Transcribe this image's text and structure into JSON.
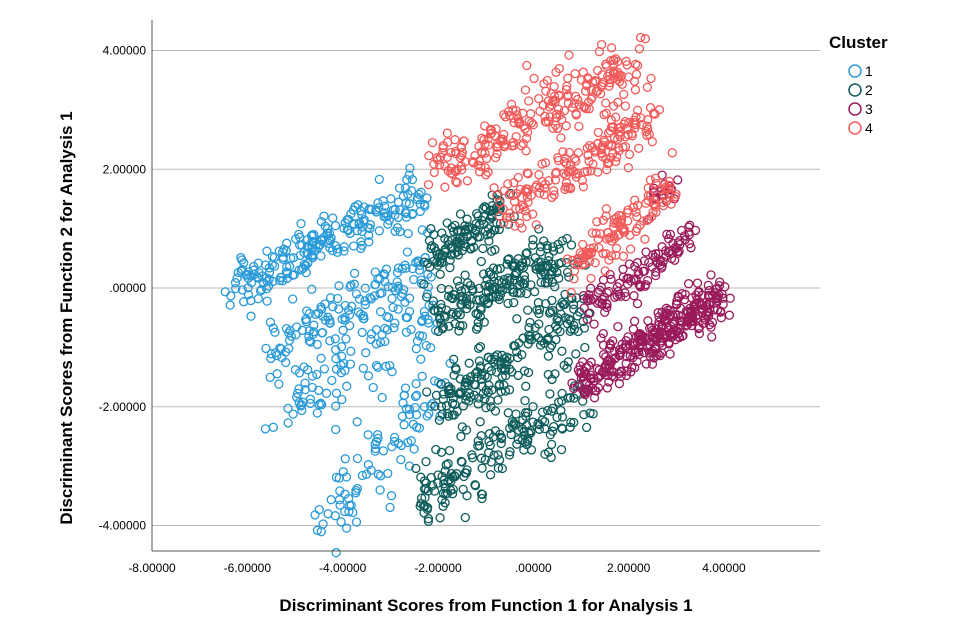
{
  "chart_data": {
    "type": "scatter",
    "xlabel": "Discriminant Scores from Function 1 for Analysis 1",
    "ylabel": "Discriminant Scores from Function 2 for Analysis 1",
    "xlim": [
      -8.0,
      5.5
    ],
    "ylim": [
      -4.4,
      4.4
    ],
    "x_ticks": [
      -8,
      -6,
      -4,
      -2,
      0,
      2,
      4
    ],
    "x_tick_labels": [
      "-8.00000",
      "-6.00000",
      "-4.00000",
      "-2.00000",
      ".00000",
      "2.00000",
      "4.00000"
    ],
    "y_ticks": [
      4,
      2,
      0,
      -2,
      -4
    ],
    "y_tick_labels": [
      "4.00000",
      "2.00000",
      ".00000",
      "-2.00000",
      "-4.00000"
    ],
    "grid": "horizontal",
    "legend": {
      "title": "Cluster",
      "placement": "right",
      "marker": "open-circle"
    },
    "series": [
      {
        "name": "1",
        "color": "#2a9ad8",
        "bands": [
          {
            "from": [
              -6.3,
              0.0
            ],
            "to": [
              -2.3,
              1.6
            ],
            "spread": 0.22,
            "n": 220
          },
          {
            "from": [
              -5.5,
              -1.0
            ],
            "to": [
              -2.1,
              0.4
            ],
            "spread": 0.25,
            "n": 130
          },
          {
            "from": [
              -5.3,
              -2.0
            ],
            "to": [
              -2.1,
              -0.5
            ],
            "spread": 0.3,
            "n": 100
          },
          {
            "from": [
              -4.4,
              -3.9
            ],
            "to": [
              -2.1,
              -1.8
            ],
            "spread": 0.35,
            "n": 90
          }
        ]
      },
      {
        "name": "2",
        "color": "#0e5c5b",
        "bands": [
          {
            "from": [
              -2.1,
              0.5
            ],
            "to": [
              -0.6,
              1.3
            ],
            "spread": 0.22,
            "n": 120
          },
          {
            "from": [
              -2.1,
              -0.5
            ],
            "to": [
              0.8,
              0.6
            ],
            "spread": 0.25,
            "n": 200
          },
          {
            "from": [
              -2.0,
              -2.0
            ],
            "to": [
              1.0,
              -0.4
            ],
            "spread": 0.28,
            "n": 190
          },
          {
            "from": [
              -2.4,
              -3.5
            ],
            "to": [
              1.2,
              -1.8
            ],
            "spread": 0.3,
            "n": 180
          }
        ]
      },
      {
        "name": "3",
        "color": "#9a1a5b",
        "bands": [
          {
            "from": [
              1.0,
              -0.4
            ],
            "to": [
              3.4,
              0.9
            ],
            "spread": 0.18,
            "n": 110
          },
          {
            "from": [
              1.0,
              -1.6
            ],
            "to": [
              4.0,
              -0.1
            ],
            "spread": 0.2,
            "n": 330
          },
          {
            "from": [
              2.2,
              1.3
            ],
            "to": [
              3.1,
              1.85
            ],
            "spread": 0.1,
            "n": 20
          }
        ]
      },
      {
        "name": "4",
        "color": "#f25a5a",
        "bands": [
          {
            "from": [
              -2.0,
              2.0
            ],
            "to": [
              2.2,
              3.8
            ],
            "spread": 0.25,
            "n": 240
          },
          {
            "from": [
              -0.6,
              1.3
            ],
            "to": [
              2.5,
              2.8
            ],
            "spread": 0.22,
            "n": 170
          },
          {
            "from": [
              0.8,
              0.3
            ],
            "to": [
              3.0,
              1.8
            ],
            "spread": 0.2,
            "n": 120
          }
        ]
      }
    ]
  }
}
